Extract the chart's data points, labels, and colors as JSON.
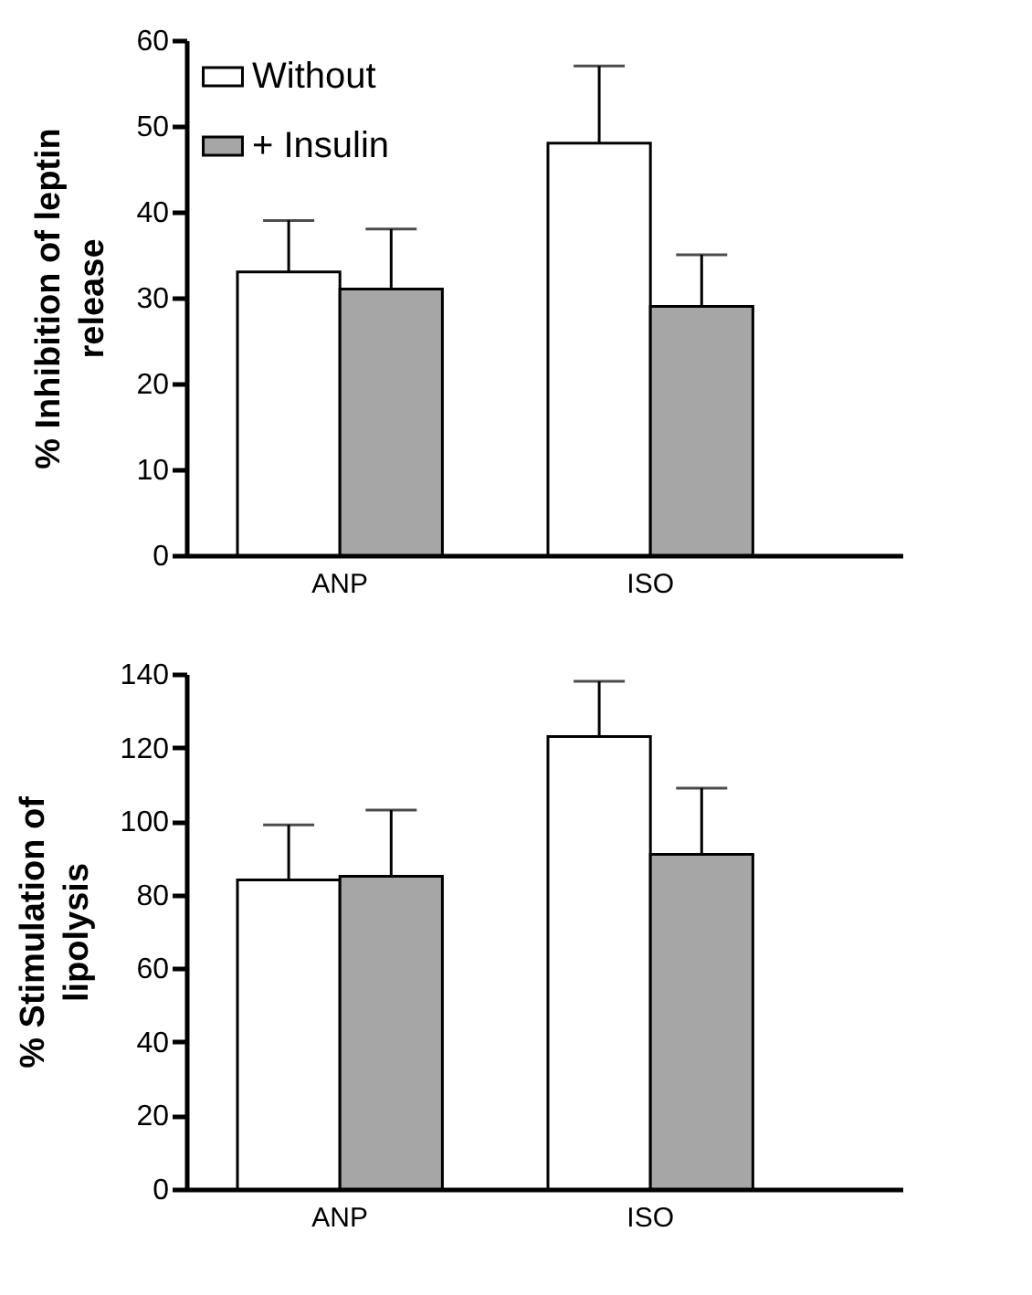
{
  "chart_data": [
    {
      "type": "bar",
      "ylabel": "% Inhibition of leptin release",
      "categories": [
        "ANP",
        "ISO"
      ],
      "ylim": [
        0,
        60
      ],
      "yticks": [
        0,
        10,
        20,
        30,
        40,
        50,
        60
      ],
      "grid": false,
      "legend": "top left",
      "series": [
        {
          "name": "Without",
          "color": "#ffffff",
          "values": [
            33,
            48
          ],
          "errors": [
            [
              33,
              39
            ],
            [
              48,
              57
            ]
          ]
        },
        {
          "name": "+ Insulin",
          "color": "#a6a6a6",
          "values": [
            31,
            29
          ],
          "errors": [
            [
              31,
              38
            ],
            [
              29,
              35
            ]
          ]
        }
      ]
    },
    {
      "type": "bar",
      "ylabel": "% Stimulation of lipolysis",
      "categories": [
        "ANP",
        "ISO"
      ],
      "ylim": [
        0,
        140
      ],
      "yticks": [
        0,
        20,
        40,
        60,
        80,
        100,
        120,
        140
      ],
      "grid": false,
      "legend": false,
      "series": [
        {
          "color": "#ffffff",
          "values": [
            84,
            123
          ],
          "errors": [
            [
              84,
              99
            ],
            [
              123,
              138
            ]
          ]
        },
        {
          "color": "#a6a6a6",
          "values": [
            85,
            91
          ],
          "errors": [
            [
              85,
              103
            ],
            [
              91,
              109
            ]
          ]
        }
      ]
    }
  ]
}
